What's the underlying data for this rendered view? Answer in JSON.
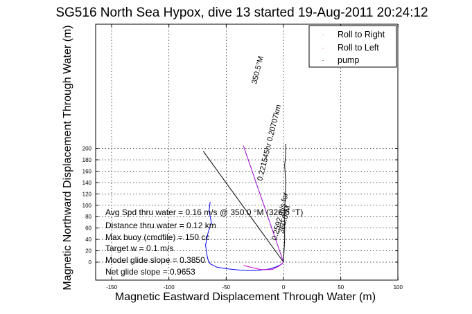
{
  "chart_data": {
    "type": "line",
    "title": "SG516 North Sea Hypox, dive 13 started 19-Aug-2011 20:24:12",
    "xlabel": "Magnetic Eastward Displacement Through Water (m)",
    "ylabel": "Magnetic Northward Displacement Through Water (m)",
    "xlim": [
      -160,
      100
    ],
    "ylim": [
      -15,
      208
    ],
    "xticks": [
      -150,
      -100,
      -50,
      0,
      50,
      100
    ],
    "yticks": [
      0,
      20,
      40,
      60,
      80,
      100,
      120,
      140,
      160,
      180,
      200
    ],
    "grid": true,
    "legend_position": "top-right",
    "legend": [
      {
        "label": "Roll to Right",
        "color": "#00cc00"
      },
      {
        "label": "Roll to Left",
        "color": "#ff0000"
      },
      {
        "label": "pump",
        "color": "#000000"
      }
    ],
    "series": [
      {
        "color": "#0000ff",
        "x": [
          -64,
          -65,
          -63,
          -66,
          -68,
          -67,
          -66,
          -64,
          -58,
          -48,
          -38,
          -28,
          -20,
          -12,
          -6,
          -2,
          0
        ],
        "y": [
          106,
          90,
          70,
          50,
          30,
          15,
          5,
          -3,
          -9,
          -12,
          -14,
          -15,
          -14,
          -12,
          -8,
          -4,
          0
        ]
      },
      {
        "color": "#cc00cc",
        "x": [
          -35,
          -20,
          -10,
          -4,
          0
        ],
        "y": [
          -6,
          -13,
          -13,
          -7,
          0
        ]
      },
      {
        "color": "#000000",
        "x": [
          -70,
          0
        ],
        "y": [
          195,
          0
        ]
      },
      {
        "color": "#9900cc",
        "x": [
          -35,
          0
        ],
        "y": [
          205,
          0
        ]
      },
      {
        "color": "#000000",
        "x": [
          0,
          1,
          1,
          2,
          1,
          2,
          2
        ],
        "y": [
          0,
          40,
          90,
          140,
          170,
          190,
          208
        ]
      }
    ],
    "annotations": [
      "350.5°M",
      "0.221545hr 0.20707km",
      "0.2592 m/s for",
      "360.0°M"
    ],
    "info_lines": [
      "Avg Spd thru water = 0.16 m/s @ 350.0 °M (326.6 °T)",
      "Distance thru water = 0.12 km",
      "Max buoy (cmdfile) = 150 cc",
      "Target w = 0.1 m/s",
      "Model glide slope = 0.3850",
      "Net glide slope = 0.9653"
    ]
  }
}
